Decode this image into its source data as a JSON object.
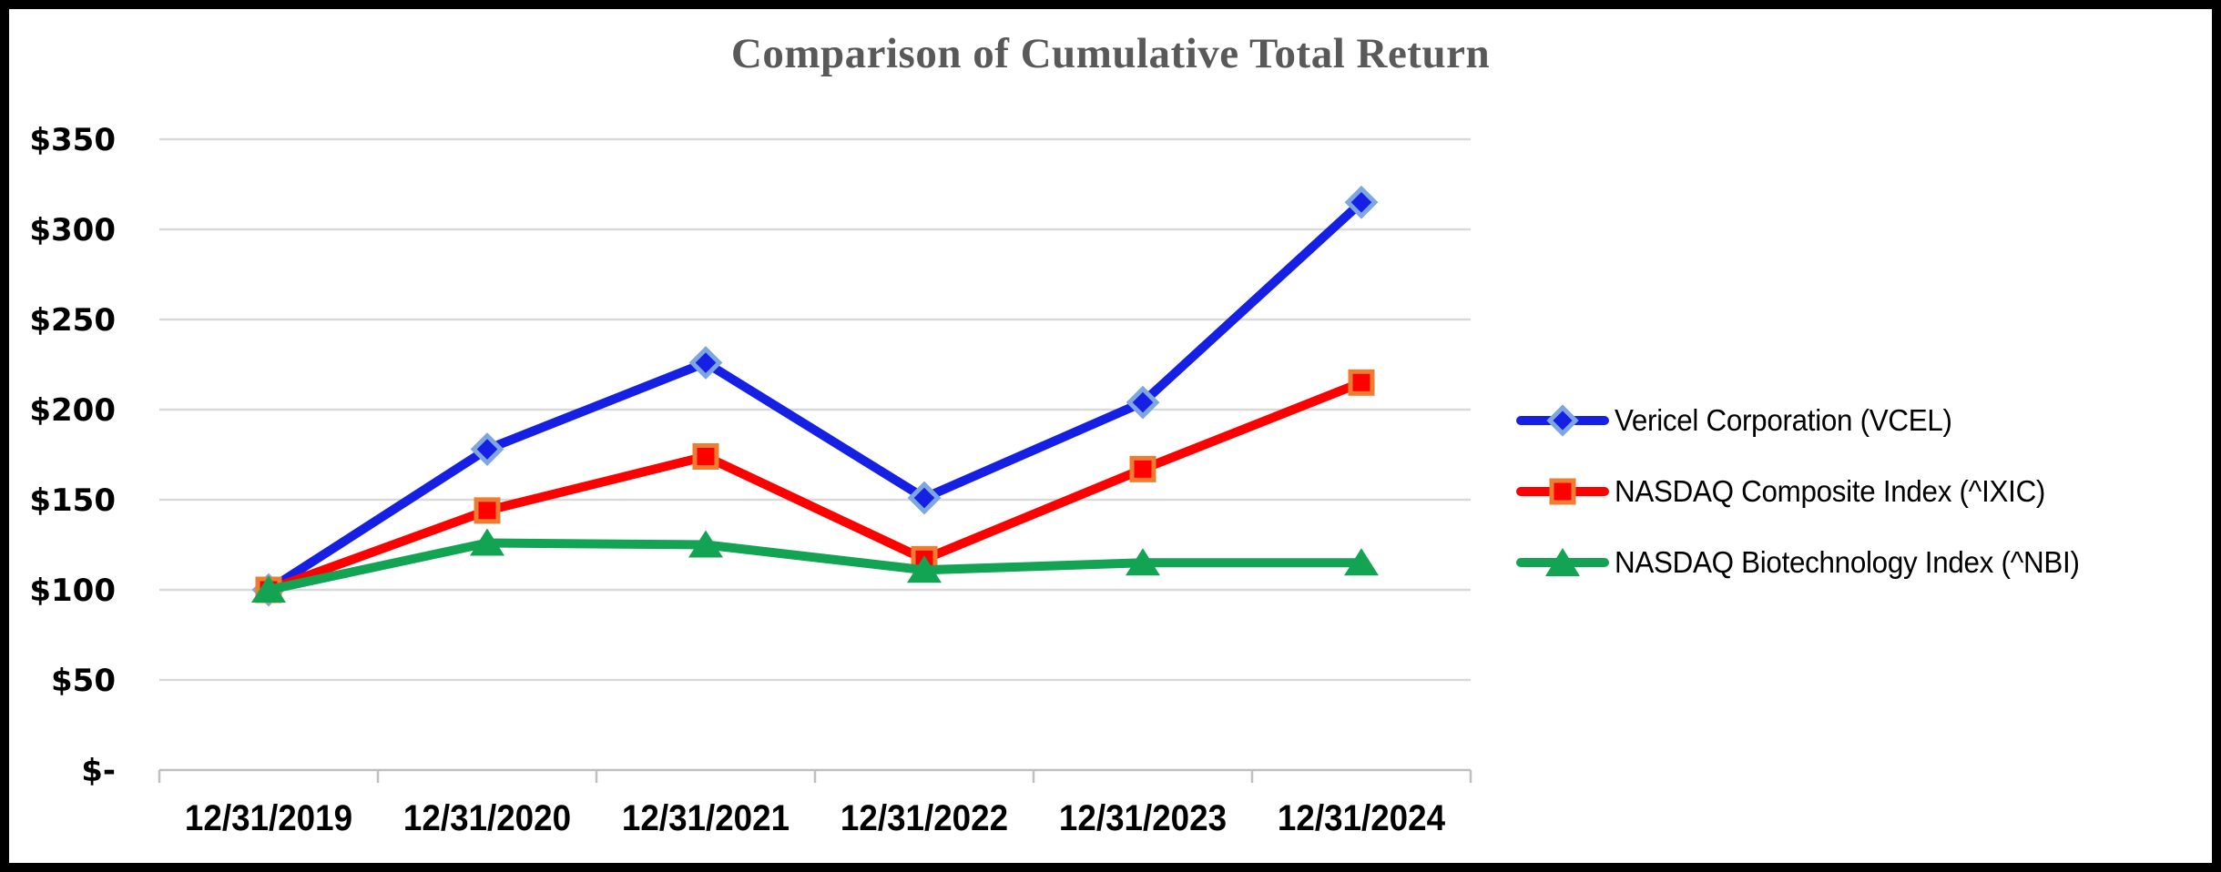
{
  "figure": {
    "background": "#FFFFFF",
    "border_color": "#000000"
  },
  "chart_data": {
    "type": "line",
    "title": "Comparison of Cumulative Total Return",
    "title_color": "#595959",
    "categories": [
      "12/31/2019",
      "12/31/2020",
      "12/31/2021",
      "12/31/2022",
      "12/31/2023",
      "12/31/2024"
    ],
    "series": [
      {
        "name": "Vericel Corporation (VCEL)",
        "values": [
          100,
          178,
          226,
          151,
          204,
          315
        ],
        "color": "#1520E4",
        "marker": "diamond",
        "marker_fill": "#1520E4",
        "marker_border": "#7EA6E0"
      },
      {
        "name": "NASDAQ Composite Index (^IXIC)",
        "values": [
          100,
          144,
          174,
          117,
          167,
          215
        ],
        "color": "#FF0000",
        "marker": "square",
        "marker_fill": "#FF0000",
        "marker_border": "#ED7D31"
      },
      {
        "name": "NASDAQ Biotechnology Index (^NBI)",
        "values": [
          100,
          126,
          125,
          111,
          115,
          115
        ],
        "color": "#12A452",
        "marker": "triangle",
        "marker_fill": "#12A452",
        "marker_border": "#12A452"
      }
    ],
    "y_axis": {
      "min": 0,
      "max": 350,
      "ticks": [
        {
          "value": 350,
          "label": "$350"
        },
        {
          "value": 300,
          "label": "$300"
        },
        {
          "value": 250,
          "label": "$250"
        },
        {
          "value": 200,
          "label": "$200"
        },
        {
          "value": 150,
          "label": "$150"
        },
        {
          "value": 100,
          "label": "$100"
        },
        {
          "value": 50,
          "label": "$50"
        },
        {
          "value": 0,
          "label": "$-"
        }
      ]
    },
    "grid_on": true,
    "grid_color": "#D9D9D9",
    "axis_color": "#BFBFBF",
    "legend_position": "right"
  }
}
